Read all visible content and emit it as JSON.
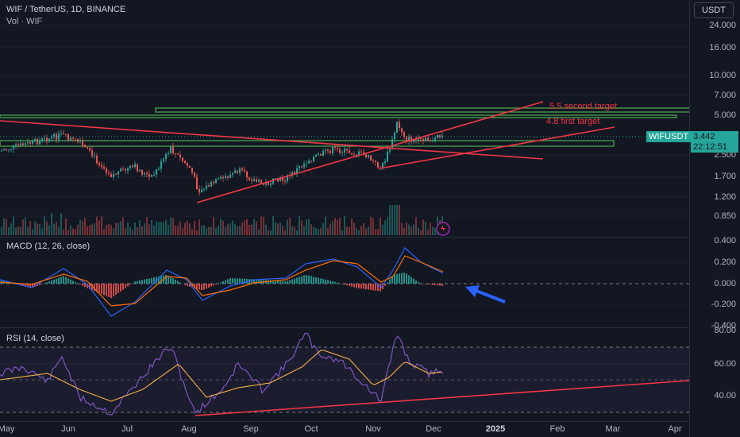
{
  "header": {
    "symbol_line": "WIF / TetherUS, 1D, BINANCE",
    "volume_line": "Vol · WIF",
    "currency_button": "USDT"
  },
  "price_axis": {
    "ticks": [
      "24.000",
      "16.000",
      "10.000",
      "7.000",
      "5.000",
      "2.500",
      "1.700",
      "1.200",
      "0.850"
    ],
    "symbol_tag": "WIFUSDT",
    "last_price": "3.442",
    "countdown": "22:12:51"
  },
  "annotations": {
    "second_target": "5.5 second target",
    "first_target": "4.8 first target"
  },
  "macd": {
    "label": "MACD (12, 26, close)",
    "ticks": [
      "0.400",
      "0.200",
      "0.000",
      "-0.200",
      "-0.400"
    ]
  },
  "rsi": {
    "label": "RSI (14, close)",
    "ticks": [
      "80.00",
      "60.00",
      "40.00"
    ]
  },
  "time_axis": {
    "labels": [
      "May",
      "Jun",
      "Jul",
      "Aug",
      "Sep",
      "Oct",
      "Nov",
      "Dec",
      "2025",
      "Feb",
      "Mar",
      "Apr"
    ]
  },
  "colors": {
    "background": "#131722",
    "up": "#26a69a",
    "down": "#ef5350",
    "trendline": "#f23645",
    "zone": "#4caf50",
    "macd_line": "#2962ff",
    "signal_line": "#ff6d00",
    "rsi_line": "#7e57c2",
    "rsi_ma": "#f5b041",
    "arrow": "#2962ff"
  }
}
